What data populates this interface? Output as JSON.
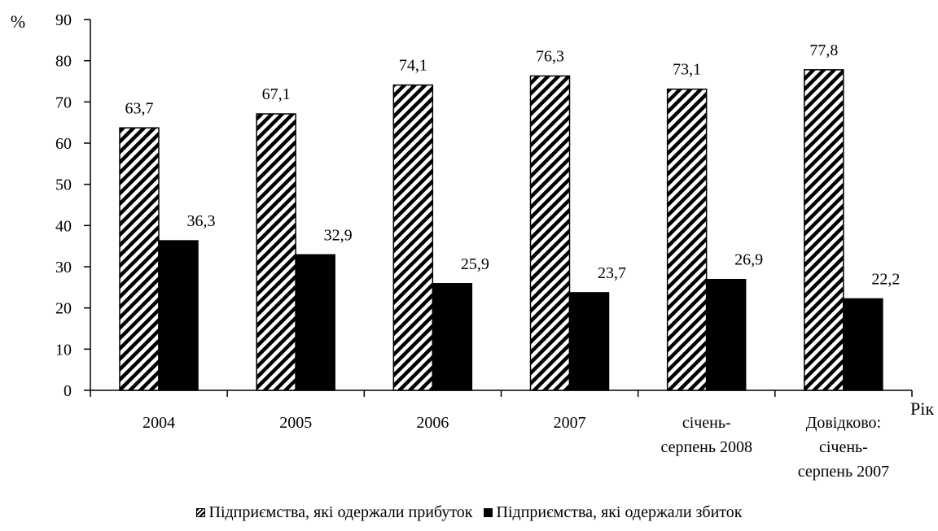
{
  "chart_data": {
    "type": "bar",
    "ylabel": "%",
    "xlabel": "Рік",
    "ylim": [
      0,
      90
    ],
    "yticks": [
      0,
      10,
      20,
      30,
      40,
      50,
      60,
      70,
      80,
      90
    ],
    "categories": [
      [
        "2004"
      ],
      [
        "2005"
      ],
      [
        "2006"
      ],
      [
        "2007"
      ],
      [
        "січень-",
        "серпень 2008"
      ],
      [
        "Довідково:",
        "січень-",
        "серпень 2007"
      ]
    ],
    "series": [
      {
        "name": "Підприємства, які одержали прибуток",
        "pattern": "hatch",
        "values": [
          63.7,
          67.1,
          74.1,
          76.3,
          73.1,
          77.8
        ],
        "labels": [
          "63,7",
          "67,1",
          "74,1",
          "76,3",
          "73,1",
          "77,8"
        ]
      },
      {
        "name": "Підприємства, які одержали збиток",
        "pattern": "solid",
        "values": [
          36.3,
          32.9,
          25.9,
          23.7,
          26.9,
          22.2
        ],
        "labels": [
          "36,3",
          "32,9",
          "25,9",
          "23,7",
          "26,9",
          "22,2"
        ]
      }
    ],
    "grid": false,
    "legend_position": "bottom",
    "colors": {
      "bar_stroke": "#000000",
      "hatch": "#000000",
      "solid": "#000000",
      "background": "#ffffff"
    }
  }
}
